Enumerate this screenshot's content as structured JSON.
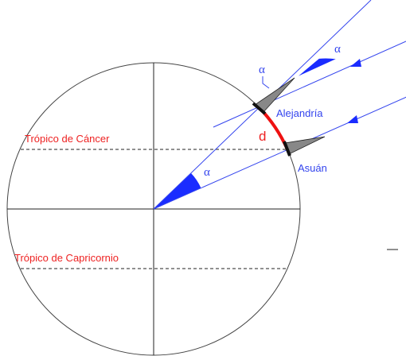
{
  "labels": {
    "alpha_center": "α",
    "alpha_top": "α",
    "alpha_gnomon": "α",
    "alexandria": "Alejandría",
    "distance": "d",
    "syene": "Asuán",
    "tropic_cancer": "Trópico de Cáncer",
    "tropic_capricorn": "Trópico de Capricornio"
  }
}
